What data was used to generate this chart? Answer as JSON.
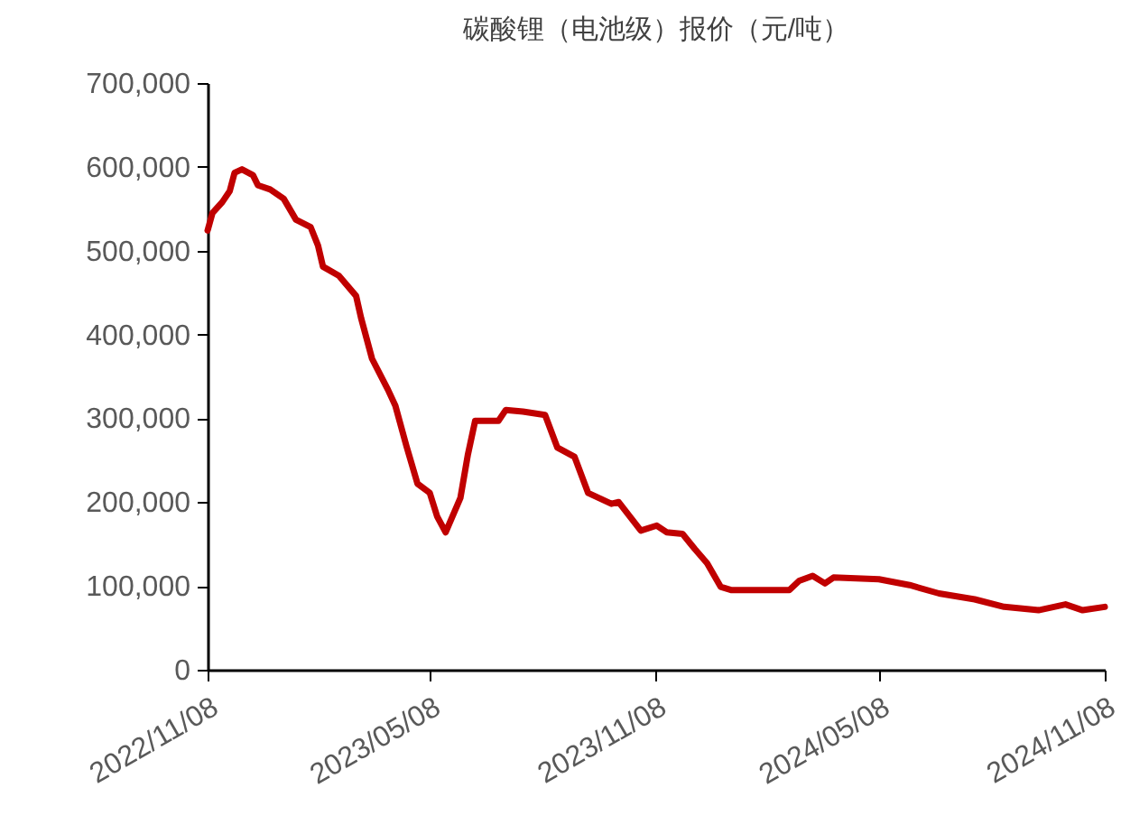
{
  "chart_data": {
    "type": "line",
    "title": "碳酸锂（电池级）报价（元/吨）",
    "x": [
      "2022-11-08",
      "2022-11-12",
      "2022-11-20",
      "2022-11-26",
      "2022-11-30",
      "2022-12-06",
      "2022-12-15",
      "2022-12-19",
      "2022-12-29",
      "2023-01-09",
      "2023-01-19",
      "2023-01-31",
      "2023-02-06",
      "2023-02-10",
      "2023-02-23",
      "2023-03-09",
      "2023-03-13",
      "2023-03-22",
      "2023-04-04",
      "2023-04-10",
      "2023-04-19",
      "2023-04-28",
      "2023-05-08",
      "2023-05-14",
      "2023-05-21",
      "2023-06-02",
      "2023-06-08",
      "2023-06-14",
      "2023-07-03",
      "2023-07-09",
      "2023-07-23",
      "2023-08-10",
      "2023-08-20",
      "2023-09-03",
      "2023-09-14",
      "2023-10-03",
      "2023-10-09",
      "2023-10-27",
      "2023-11-09",
      "2023-11-17",
      "2023-11-30",
      "2023-12-10",
      "2023-12-20",
      "2023-12-31",
      "2024-01-09",
      "2024-02-25",
      "2024-03-04",
      "2024-03-15",
      "2024-03-25",
      "2024-04-01",
      "2024-05-08",
      "2024-06-02",
      "2024-06-26",
      "2024-07-25",
      "2024-08-18",
      "2024-09-15",
      "2024-10-07",
      "2024-10-21",
      "2024-11-08"
    ],
    "series": [
      {
        "color": "#c00000",
        "values": [
          524000,
          545000,
          558000,
          571000,
          593000,
          597000,
          590000,
          578000,
          573000,
          562000,
          537000,
          528000,
          506000,
          481000,
          470000,
          446000,
          420000,
          371000,
          334000,
          315000,
          267000,
          222000,
          211000,
          183000,
          164000,
          205000,
          256000,
          297000,
          297000,
          310000,
          308000,
          304000,
          265000,
          254000,
          211000,
          198000,
          200000,
          166000,
          172000,
          164000,
          162000,
          144000,
          127000,
          99000,
          95000,
          95000,
          106000,
          112000,
          103000,
          110000,
          108000,
          101000,
          91000,
          84000,
          75000,
          71000,
          78000,
          71000,
          75000
        ]
      }
    ],
    "xlim": [
      "2022-11-08",
      "2024-11-08"
    ],
    "xticks": [
      {
        "value": "2022-11-08",
        "label": "2022/11/08"
      },
      {
        "value": "2023-05-08",
        "label": "2023/05/08"
      },
      {
        "value": "2023-11-08",
        "label": "2023/11/08"
      },
      {
        "value": "2024-05-08",
        "label": "2024/05/08"
      },
      {
        "value": "2024-11-08",
        "label": "2024/11/08"
      }
    ],
    "ylim": [
      0,
      700000
    ],
    "yticks": [
      {
        "value": 0,
        "label": "0"
      },
      {
        "value": 100000,
        "label": "100,000"
      },
      {
        "value": 200000,
        "label": "200,000"
      },
      {
        "value": 300000,
        "label": "300,000"
      },
      {
        "value": 400000,
        "label": "400,000"
      },
      {
        "value": 500000,
        "label": "500,000"
      },
      {
        "value": 600000,
        "label": "600,000"
      },
      {
        "value": 700000,
        "label": "700,000"
      }
    ],
    "grid": false,
    "legend": false,
    "marker": "none",
    "line_style": "solid"
  }
}
